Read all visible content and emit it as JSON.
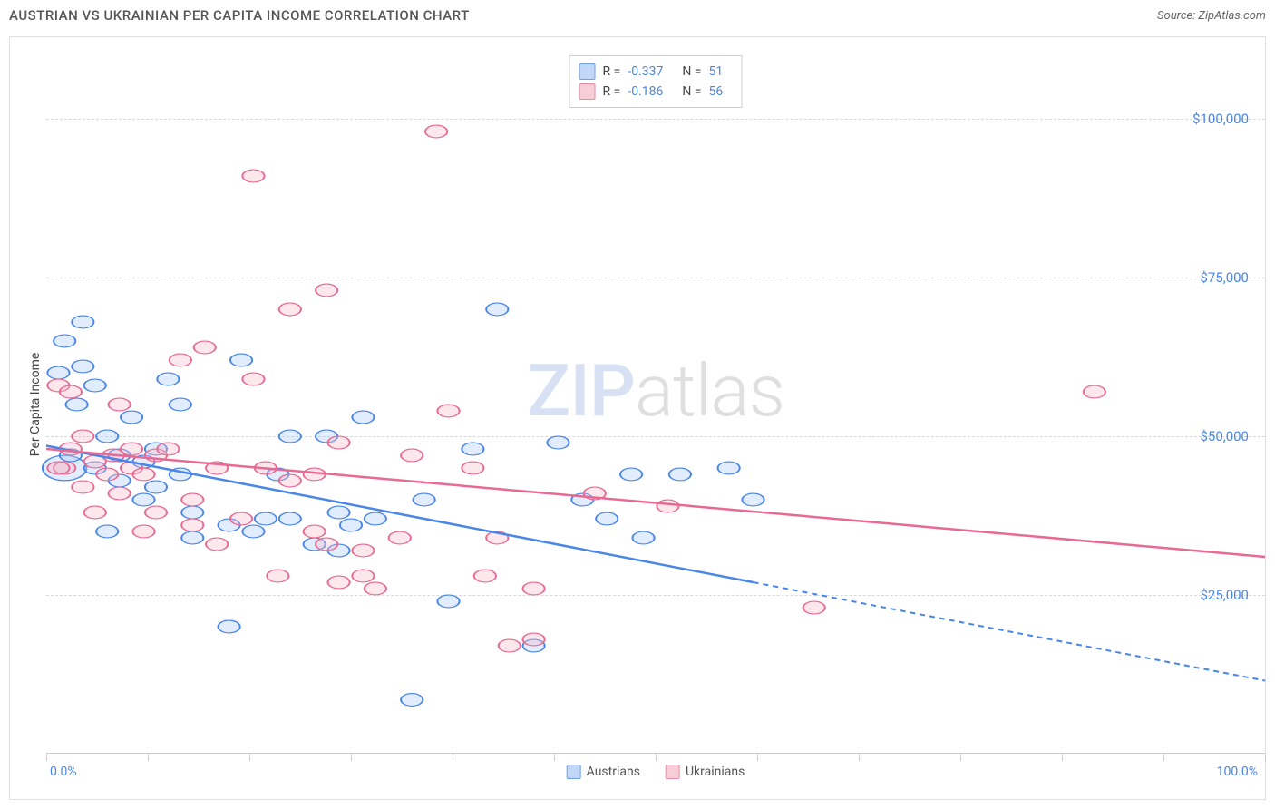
{
  "title": "AUSTRIAN VS UKRAINIAN PER CAPITA INCOME CORRELATION CHART",
  "source_label": "Source: ZipAtlas.com",
  "y_axis_label": "Per Capita Income",
  "watermark": {
    "part1": "ZIP",
    "part2": "atlas"
  },
  "chart": {
    "type": "scatter",
    "background_color": "#ffffff",
    "grid_color": "#d8d8d8",
    "border_color": "#e0e0e0",
    "xlim": [
      0,
      100
    ],
    "ylim": [
      0,
      110000
    ],
    "x_axis": {
      "min_label": "0.0%",
      "max_label": "100.0%",
      "tick_positions_pct": [
        0,
        8.33,
        16.67,
        25,
        33.33,
        41.67,
        50,
        58.33,
        66.67,
        75,
        83.33,
        91.67,
        100
      ]
    },
    "y_axis": {
      "ticks": [
        {
          "value": 25000,
          "label": "$25,000"
        },
        {
          "value": 50000,
          "label": "$50,000"
        },
        {
          "value": 75000,
          "label": "$75,000"
        },
        {
          "value": 100000,
          "label": "$100,000"
        }
      ],
      "tick_color": "#4a86e8"
    },
    "marker_radius": 9,
    "marker_stroke_width": 1.5,
    "marker_fill_opacity": 0.35,
    "trendline_width": 2.5,
    "series": [
      {
        "key": "austrians",
        "label": "Austrians",
        "stroke_color": "#4a86e8",
        "fill_color": "#a9c8f5",
        "swatch_fill": "#c1d7f7",
        "swatch_border": "#6fa0e8",
        "stats": {
          "R": "-0.337",
          "N": "51"
        },
        "trendline": {
          "x1": 0,
          "y1": 48500,
          "x2_solid": 58,
          "y2_solid": 27000,
          "x2": 100,
          "y2": 11500
        },
        "points": [
          [
            1.5,
            65000
          ],
          [
            1,
            60000
          ],
          [
            2,
            47000
          ],
          [
            2.5,
            55000
          ],
          [
            3,
            61000
          ],
          [
            3,
            68000
          ],
          [
            4,
            58000
          ],
          [
            4,
            45000
          ],
          [
            5,
            50000
          ],
          [
            5,
            35000
          ],
          [
            6,
            47000
          ],
          [
            6,
            43000
          ],
          [
            7,
            53000
          ],
          [
            8,
            46000
          ],
          [
            8,
            40000
          ],
          [
            9,
            42000
          ],
          [
            9,
            48000
          ],
          [
            10,
            59000
          ],
          [
            11,
            55000
          ],
          [
            11,
            44000
          ],
          [
            12,
            38000
          ],
          [
            12,
            34000
          ],
          [
            15,
            36000
          ],
          [
            15,
            20000
          ],
          [
            16,
            62000
          ],
          [
            17,
            35000
          ],
          [
            18,
            37000
          ],
          [
            19,
            44000
          ],
          [
            20,
            50000
          ],
          [
            20,
            37000
          ],
          [
            22,
            33000
          ],
          [
            23,
            50000
          ],
          [
            24,
            38000
          ],
          [
            24,
            32000
          ],
          [
            25,
            36000
          ],
          [
            26,
            53000
          ],
          [
            27,
            37000
          ],
          [
            30,
            8500
          ],
          [
            31,
            40000
          ],
          [
            33,
            24000
          ],
          [
            35,
            48000
          ],
          [
            37,
            70000
          ],
          [
            40,
            17000
          ],
          [
            42,
            49000
          ],
          [
            44,
            40000
          ],
          [
            46,
            37000
          ],
          [
            48,
            44000
          ],
          [
            49,
            34000
          ],
          [
            52,
            44000
          ],
          [
            56,
            45000
          ],
          [
            58,
            40000
          ]
        ],
        "big_point": {
          "x": 1.5,
          "y": 45000,
          "r": 18
        }
      },
      {
        "key": "ukrainians",
        "label": "Ukrainians",
        "stroke_color": "#e86a92",
        "fill_color": "#f5b9ca",
        "swatch_fill": "#f7cdd8",
        "swatch_border": "#e889a7",
        "stats": {
          "R": "-0.186",
          "N": "56"
        },
        "trendline": {
          "x1": 0,
          "y1": 48000,
          "x2_solid": 100,
          "y2_solid": 31000,
          "x2": 100,
          "y2": 31000
        },
        "points": [
          [
            1,
            58000
          ],
          [
            1.5,
            45000
          ],
          [
            2,
            48000
          ],
          [
            2,
            57000
          ],
          [
            3,
            50000
          ],
          [
            3,
            42000
          ],
          [
            4,
            46000
          ],
          [
            4,
            38000
          ],
          [
            5,
            44000
          ],
          [
            5.5,
            47000
          ],
          [
            6,
            55000
          ],
          [
            6,
            41000
          ],
          [
            7,
            45000
          ],
          [
            7,
            48000
          ],
          [
            8,
            44000
          ],
          [
            8,
            35000
          ],
          [
            9,
            47000
          ],
          [
            9,
            38000
          ],
          [
            10,
            48000
          ],
          [
            11,
            62000
          ],
          [
            12,
            40000
          ],
          [
            12,
            36000
          ],
          [
            13,
            64000
          ],
          [
            14,
            33000
          ],
          [
            14,
            45000
          ],
          [
            16,
            37000
          ],
          [
            17,
            59000
          ],
          [
            17,
            91000
          ],
          [
            18,
            45000
          ],
          [
            19,
            28000
          ],
          [
            20,
            70000
          ],
          [
            20,
            43000
          ],
          [
            22,
            44000
          ],
          [
            22,
            35000
          ],
          [
            23,
            73000
          ],
          [
            23,
            33000
          ],
          [
            24,
            49000
          ],
          [
            24,
            27000
          ],
          [
            26,
            32000
          ],
          [
            26,
            28000
          ],
          [
            27,
            26000
          ],
          [
            29,
            34000
          ],
          [
            30,
            47000
          ],
          [
            32,
            98000
          ],
          [
            33,
            54000
          ],
          [
            35,
            45000
          ],
          [
            36,
            28000
          ],
          [
            37,
            34000
          ],
          [
            38,
            17000
          ],
          [
            40,
            26000
          ],
          [
            40,
            18000
          ],
          [
            45,
            41000
          ],
          [
            51,
            39000
          ],
          [
            63,
            23000
          ],
          [
            86,
            57000
          ],
          [
            1,
            45000
          ]
        ]
      }
    ]
  },
  "stats_box": {
    "r_label": "R =",
    "n_label": "N ="
  },
  "bottom_legend": {
    "items": [
      "austrians",
      "ukrainians"
    ]
  }
}
